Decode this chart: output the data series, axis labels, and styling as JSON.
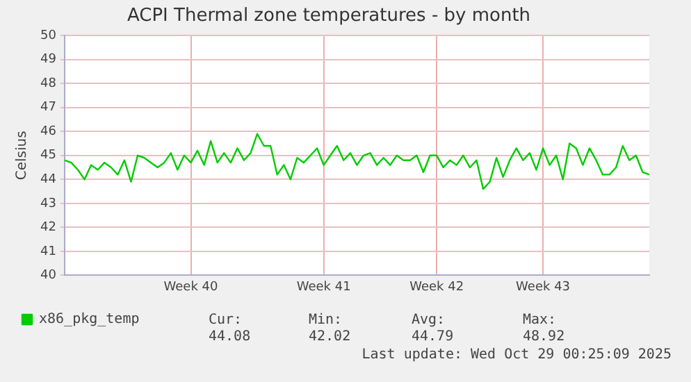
{
  "chart_data": {
    "type": "line",
    "title": "ACPI Thermal zone temperatures - by month",
    "ylabel": "Celsius",
    "categories": [
      null,
      null,
      null,
      null,
      null,
      null,
      null,
      null,
      null,
      null,
      null,
      null,
      null,
      null,
      null,
      null,
      null,
      null,
      null,
      "Week 40",
      null,
      null,
      null,
      null,
      null,
      null,
      null,
      null,
      null,
      null,
      null,
      null,
      null,
      null,
      null,
      null,
      null,
      null,
      null,
      "Week 41",
      null,
      null,
      null,
      null,
      null,
      null,
      null,
      null,
      null,
      null,
      null,
      null,
      null,
      null,
      null,
      null,
      "Week 42",
      null,
      null,
      null,
      null,
      null,
      null,
      null,
      null,
      null,
      null,
      null,
      null,
      null,
      null,
      null,
      "Week 43",
      null,
      null,
      null,
      null,
      null,
      null,
      null,
      null,
      null,
      null,
      null,
      null,
      null,
      null,
      null,
      null
    ],
    "ylim": [
      40,
      50
    ],
    "yticks": [
      40,
      41,
      42,
      43,
      44,
      45,
      46,
      47,
      48,
      49,
      50
    ],
    "grid": true,
    "legend": "bottom",
    "marker": "none",
    "line_style": "solid",
    "series": [
      {
        "name": "x86_pkg_temp",
        "color": "#00cc00",
        "values": [
          44.8,
          44.7,
          44.4,
          44.0,
          44.6,
          44.4,
          44.7,
          44.5,
          44.2,
          44.8,
          43.9,
          45.0,
          44.9,
          44.7,
          44.5,
          44.7,
          45.1,
          44.4,
          45.0,
          44.7,
          45.2,
          44.6,
          45.6,
          44.7,
          45.1,
          44.7,
          45.3,
          44.8,
          45.1,
          45.9,
          45.4,
          45.4,
          44.2,
          44.6,
          44.0,
          44.9,
          44.7,
          45.0,
          45.3,
          44.6,
          45.0,
          45.4,
          44.8,
          45.1,
          44.6,
          45.0,
          45.1,
          44.6,
          44.9,
          44.6,
          45.0,
          44.8,
          44.8,
          45.0,
          44.3,
          45.0,
          45.0,
          44.5,
          44.8,
          44.6,
          45.0,
          44.5,
          44.8,
          43.6,
          43.9,
          44.9,
          44.1,
          44.8,
          45.3,
          44.8,
          45.1,
          44.4,
          45.3,
          44.6,
          45.0,
          44.0,
          45.5,
          45.3,
          44.6,
          45.3,
          44.8,
          44.2,
          44.2,
          44.5,
          45.4,
          44.8,
          45.0,
          44.3,
          44.2
        ]
      }
    ],
    "annotations": [
      "Cur:",
      "44.08",
      "Min:",
      "42.02",
      "Avg:",
      "44.79",
      "Max:",
      "48.92",
      "Last update: Wed Oct 29 00:25:09 2025"
    ]
  }
}
